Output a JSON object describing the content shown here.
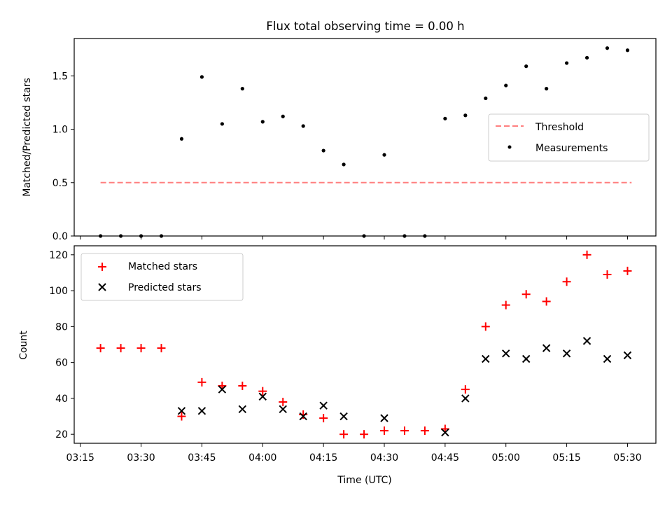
{
  "chart_data": [
    {
      "type": "scatter",
      "title": "Flux total observing time = 0.00 h",
      "ylabel": "Matched/Predicted stars",
      "xlabel": "",
      "ylim": [
        0,
        1.85
      ],
      "yticks": [
        0.0,
        0.5,
        1.0,
        1.5
      ],
      "ytick_labels": [
        "0.0",
        "0.5",
        "1.0",
        "1.5"
      ],
      "threshold": {
        "label": "Threshold",
        "value": 0.5,
        "from": "03:20",
        "to": "05:31",
        "color": "#ff7f7f",
        "style": "dashed"
      },
      "legend": {
        "position": "center-right",
        "entries": [
          "Threshold",
          "Measurements"
        ]
      },
      "series": [
        {
          "name": "Measurements",
          "color": "#000000",
          "x": [
            "03:20",
            "03:25",
            "03:30",
            "03:35",
            "03:40",
            "03:45",
            "03:50",
            "03:55",
            "04:00",
            "04:05",
            "04:10",
            "04:15",
            "04:20",
            "04:25",
            "04:30",
            "04:35",
            "04:40",
            "04:45",
            "04:50",
            "04:55",
            "05:00",
            "05:05",
            "05:10",
            "05:15",
            "05:20",
            "05:25",
            "05:30"
          ],
          "y": [
            0.0,
            0.0,
            0.0,
            0.0,
            0.91,
            1.49,
            1.05,
            1.38,
            1.07,
            1.12,
            1.03,
            0.8,
            0.67,
            0.0,
            0.76,
            0.0,
            0.0,
            1.1,
            1.13,
            1.29,
            1.41,
            1.59,
            1.38,
            1.62,
            1.67,
            1.76,
            1.74
          ]
        }
      ]
    },
    {
      "type": "scatter",
      "title": "",
      "xlabel": "Time (UTC)",
      "ylabel": "Count",
      "ylim": [
        15,
        125
      ],
      "yticks": [
        20,
        40,
        60,
        80,
        100,
        120
      ],
      "ytick_labels": [
        "20",
        "40",
        "60",
        "80",
        "100",
        "120"
      ],
      "xticks": [
        "03:15",
        "03:30",
        "03:45",
        "04:00",
        "04:15",
        "04:30",
        "04:45",
        "05:00",
        "05:15",
        "05:30"
      ],
      "legend": {
        "position": "top-left",
        "entries": [
          "Matched stars",
          "Predicted stars"
        ]
      },
      "series": [
        {
          "name": "Matched stars",
          "marker": "+",
          "color": "#ff0000",
          "x": [
            "03:20",
            "03:25",
            "03:30",
            "03:35",
            "03:40",
            "03:45",
            "03:50",
            "03:55",
            "04:00",
            "04:05",
            "04:10",
            "04:15",
            "04:20",
            "04:25",
            "04:30",
            "04:35",
            "04:40",
            "04:45",
            "04:50",
            "04:55",
            "05:00",
            "05:05",
            "05:10",
            "05:15",
            "05:20",
            "05:25",
            "05:30"
          ],
          "y": [
            68,
            68,
            68,
            68,
            30,
            49,
            47,
            47,
            44,
            38,
            31,
            29,
            20,
            20,
            22,
            22,
            22,
            23,
            45,
            80,
            92,
            98,
            94,
            105,
            120,
            109,
            111
          ]
        },
        {
          "name": "Predicted stars",
          "marker": "x",
          "color": "#000000",
          "x": [
            "03:40",
            "03:45",
            "03:50",
            "03:55",
            "04:00",
            "04:05",
            "04:10",
            "04:15",
            "04:20",
            "04:30",
            "04:45",
            "04:50",
            "04:55",
            "05:00",
            "05:05",
            "05:10",
            "05:15",
            "05:20",
            "05:25",
            "05:30"
          ],
          "y": [
            33,
            33,
            45,
            34,
            41,
            34,
            30,
            36,
            30,
            29,
            21,
            40,
            62,
            65,
            62,
            68,
            65,
            72,
            62,
            64
          ]
        }
      ]
    }
  ]
}
